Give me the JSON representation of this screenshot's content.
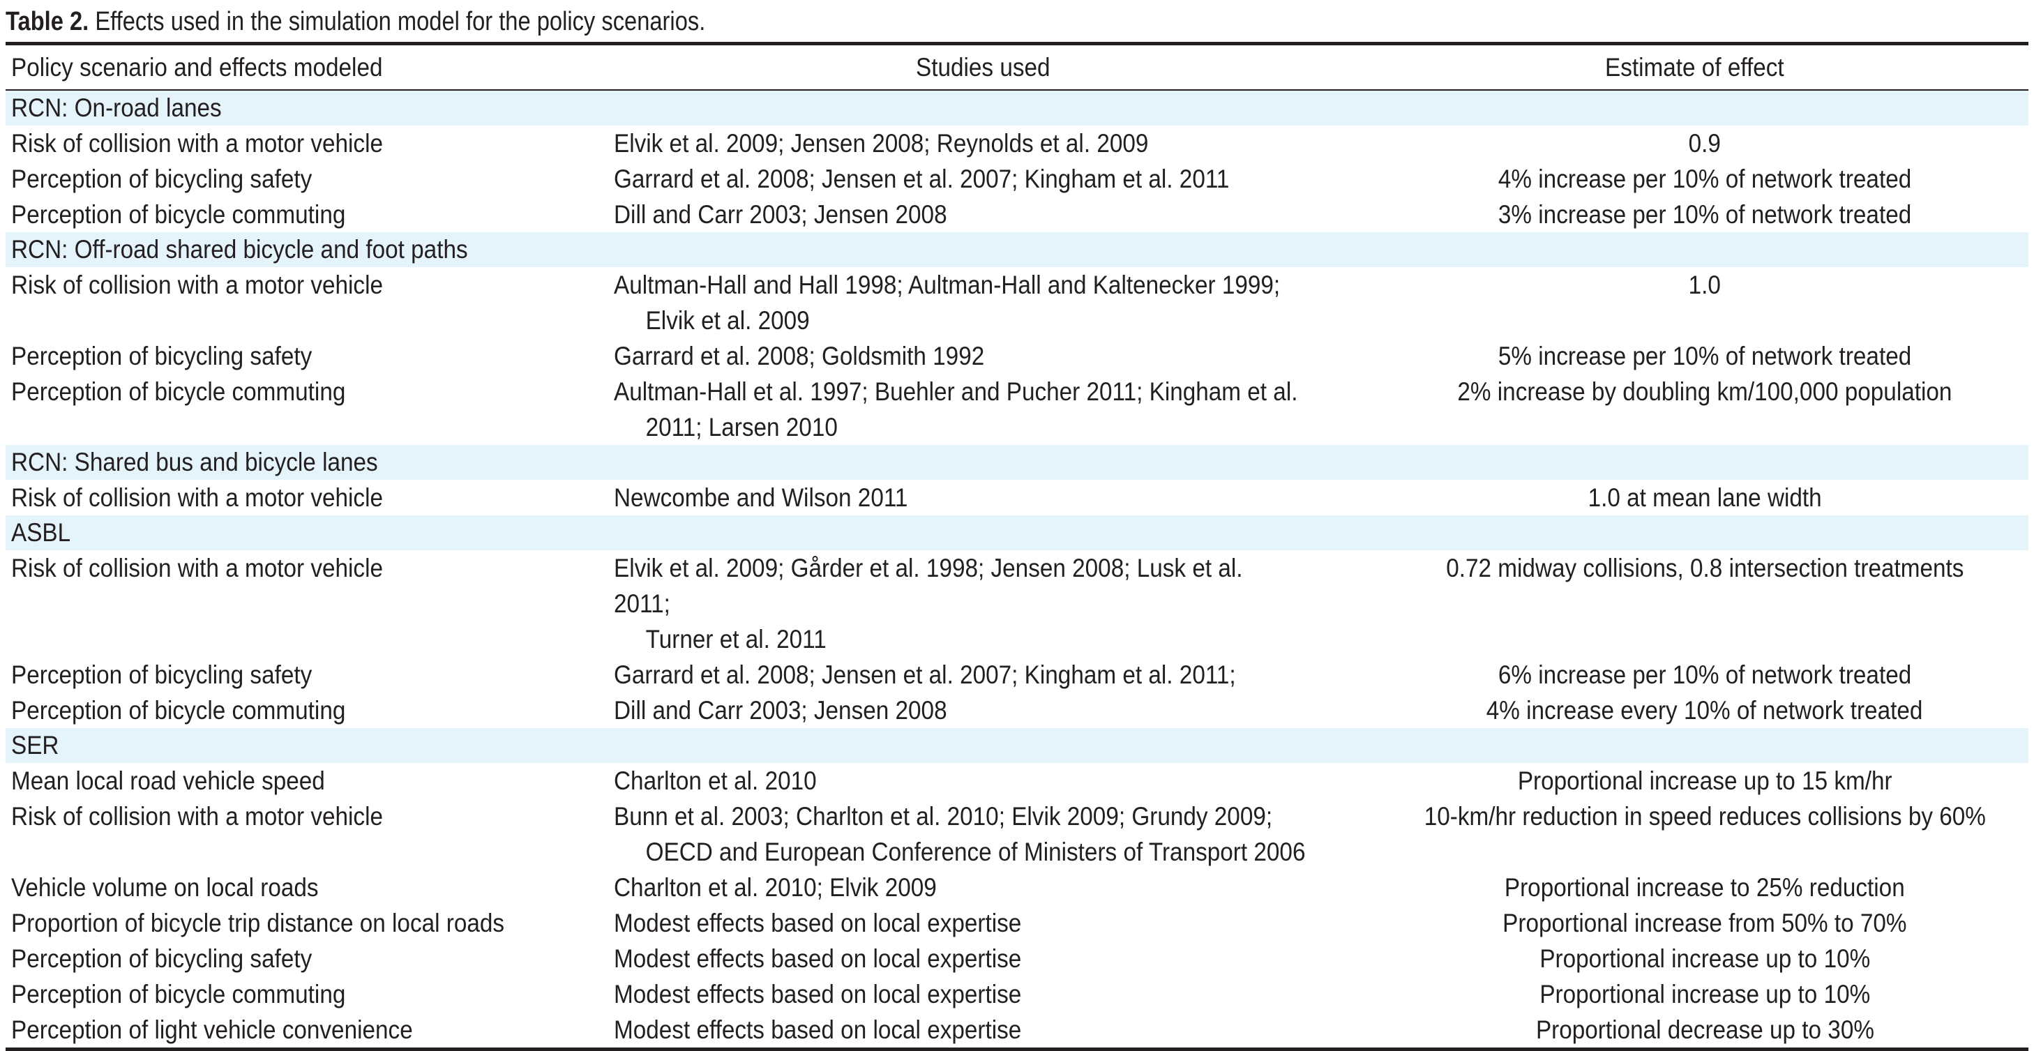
{
  "caption": {
    "label": "Table 2.",
    "text": " Effects used in the simulation model for the policy scenarios."
  },
  "headers": [
    "Policy scenario and effects modeled",
    "Studies used",
    "Estimate of effect"
  ],
  "sections": [
    {
      "title": "RCN: On-road lanes",
      "rows": [
        {
          "effect": "Risk of collision with a motor vehicle",
          "studies": [
            "Elvik et al. 2009; Jensen 2008; Reynolds et al. 2009"
          ],
          "estimate": "0.9"
        },
        {
          "effect": "Perception of bicycling safety",
          "studies": [
            "Garrard et al. 2008; Jensen et al. 2007; Kingham et al. 2011"
          ],
          "estimate": "4% increase per 10% of network treated"
        },
        {
          "effect": "Perception of bicycle commuting",
          "studies": [
            "Dill and Carr 2003; Jensen 2008"
          ],
          "estimate": "3% increase per 10% of network treated"
        }
      ]
    },
    {
      "title": "RCN: Off-road shared bicycle and foot paths",
      "rows": [
        {
          "effect": "Risk of collision with a motor vehicle",
          "studies": [
            "Aultman-Hall and Hall 1998; Aultman-Hall and Kaltenecker 1999;",
            "Elvik et al. 2009"
          ],
          "estimate": "1.0"
        },
        {
          "effect": "Perception of bicycling safety",
          "studies": [
            "Garrard et al. 2008; Goldsmith 1992"
          ],
          "estimate": "5% increase per 10% of network treated"
        },
        {
          "effect": "Perception of bicycle commuting",
          "studies": [
            "Aultman-Hall et al. 1997; Buehler and Pucher 2011; Kingham et al.",
            "2011; Larsen 2010"
          ],
          "estimate": "2% increase by doubling km/100,000 population"
        }
      ]
    },
    {
      "title": "RCN: Shared bus and bicycle lanes",
      "rows": [
        {
          "effect": "Risk of collision with a motor vehicle",
          "studies": [
            "Newcombe and Wilson 2011"
          ],
          "estimate": "1.0 at mean lane width"
        }
      ]
    },
    {
      "title": "ASBL",
      "rows": [
        {
          "effect": "Risk of collision with a motor vehicle",
          "studies": [
            "Elvik et al. 2009; Gårder et al. 1998; Jensen 2008; Lusk et al. 2011;",
            "Turner et al. 2011"
          ],
          "estimate": "0.72 midway collisions, 0.8 intersection treatments"
        },
        {
          "effect": "Perception of bicycling safety",
          "studies": [
            "Garrard et al. 2008; Jensen et al. 2007; Kingham et al. 2011;"
          ],
          "estimate": "6% increase per 10% of network treated"
        },
        {
          "effect": "Perception of bicycle commuting",
          "studies": [
            "Dill and Carr 2003; Jensen 2008"
          ],
          "estimate": "4% increase every 10% of network treated"
        }
      ]
    },
    {
      "title": "SER",
      "rows": [
        {
          "effect": "Mean local road vehicle speed",
          "studies": [
            "Charlton et al. 2010"
          ],
          "estimate": "Proportional increase up to 15 km/hr"
        },
        {
          "effect": "Risk of collision with a motor vehicle",
          "studies": [
            "Bunn et al. 2003; Charlton et al. 2010; Elvik 2009; Grundy 2009;",
            "OECD and European Conference of Ministers of Transport 2006"
          ],
          "estimate": "10-km/hr reduction in speed reduces collisions by 60%"
        },
        {
          "effect": "Vehicle volume on local roads",
          "studies": [
            "Charlton et al. 2010; Elvik 2009"
          ],
          "estimate": "Proportional increase to 25% reduction"
        },
        {
          "effect": "Proportion of bicycle trip distance on local roads",
          "studies": [
            "Modest effects based on local expertise"
          ],
          "estimate": "Proportional increase from 50% to 70%"
        },
        {
          "effect": "Perception of bicycling safety",
          "studies": [
            "Modest effects based on local expertise"
          ],
          "estimate": "Proportional increase up to 10%"
        },
        {
          "effect": "Perception of bicycle commuting",
          "studies": [
            "Modest effects based on local expertise"
          ],
          "estimate": "Proportional increase up to 10%"
        },
        {
          "effect": "Perception of light vehicle convenience",
          "studies": [
            "Modest effects based on local expertise"
          ],
          "estimate": "Proportional decrease up to 30%"
        }
      ]
    }
  ]
}
